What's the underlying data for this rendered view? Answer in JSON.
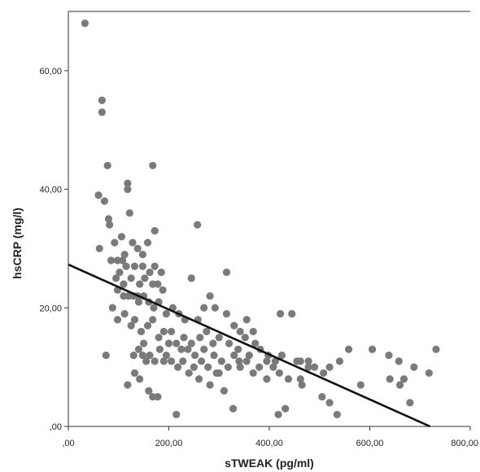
{
  "chart_data": {
    "type": "scatter",
    "title": "",
    "xlabel": "sTWEAK (pg/ml)",
    "ylabel": "hsCRP (mg/l)",
    "xlim": [
      0,
      800
    ],
    "ylim": [
      0,
      70
    ],
    "xticks": [
      0,
      200,
      400,
      600,
      800
    ],
    "yticks": [
      0,
      20,
      40,
      60
    ],
    "xtick_labels": [
      ",00",
      "200,00",
      "400,00",
      "600,00",
      "800,00"
    ],
    "ytick_labels": [
      ",00",
      "20,00",
      "40,00",
      "60,00"
    ],
    "grid": false,
    "legend": "none",
    "colors": {
      "point": "#7a7a7a",
      "line": "#111111",
      "axis": "#333333"
    },
    "points": [
      [
        33,
        68
      ],
      [
        67,
        55
      ],
      [
        67,
        53
      ],
      [
        78,
        44
      ],
      [
        168,
        44
      ],
      [
        60,
        39
      ],
      [
        72,
        38
      ],
      [
        118,
        41
      ],
      [
        118,
        40
      ],
      [
        80,
        35
      ],
      [
        82,
        34
      ],
      [
        122,
        36
      ],
      [
        172,
        33
      ],
      [
        257,
        34
      ],
      [
        62,
        30
      ],
      [
        92,
        31
      ],
      [
        106,
        32
      ],
      [
        112,
        29
      ],
      [
        128,
        31
      ],
      [
        138,
        30
      ],
      [
        148,
        29
      ],
      [
        158,
        31
      ],
      [
        85,
        28
      ],
      [
        98,
        28
      ],
      [
        108,
        28
      ],
      [
        115,
        27
      ],
      [
        132,
        27
      ],
      [
        148,
        27
      ],
      [
        162,
        26
      ],
      [
        172,
        27
      ],
      [
        185,
        26
      ],
      [
        95,
        25
      ],
      [
        125,
        25
      ],
      [
        142,
        24
      ],
      [
        152,
        25
      ],
      [
        168,
        24
      ],
      [
        178,
        24
      ],
      [
        188,
        23
      ],
      [
        98,
        23
      ],
      [
        110,
        22
      ],
      [
        120,
        22
      ],
      [
        130,
        22
      ],
      [
        140,
        21
      ],
      [
        150,
        22
      ],
      [
        160,
        21
      ],
      [
        170,
        20
      ],
      [
        180,
        21
      ],
      [
        195,
        19
      ],
      [
        208,
        20
      ],
      [
        220,
        19
      ],
      [
        232,
        18
      ],
      [
        245,
        25
      ],
      [
        258,
        18
      ],
      [
        270,
        20
      ],
      [
        282,
        22
      ],
      [
        292,
        20
      ],
      [
        315,
        26
      ],
      [
        315,
        19
      ],
      [
        330,
        17
      ],
      [
        342,
        16
      ],
      [
        355,
        18
      ],
      [
        368,
        16
      ],
      [
        98,
        18
      ],
      [
        112,
        19
      ],
      [
        125,
        17
      ],
      [
        132,
        18
      ],
      [
        145,
        16
      ],
      [
        158,
        17
      ],
      [
        168,
        18
      ],
      [
        180,
        15
      ],
      [
        190,
        16
      ],
      [
        205,
        16
      ],
      [
        215,
        14
      ],
      [
        230,
        15
      ],
      [
        245,
        14
      ],
      [
        262,
        15
      ],
      [
        275,
        16
      ],
      [
        288,
        14
      ],
      [
        300,
        15
      ],
      [
        320,
        14
      ],
      [
        338,
        13
      ],
      [
        352,
        15
      ],
      [
        372,
        14
      ],
      [
        382,
        13
      ],
      [
        398,
        12
      ],
      [
        412,
        11
      ],
      [
        425,
        12
      ],
      [
        445,
        19
      ],
      [
        422,
        19
      ],
      [
        462,
        11
      ],
      [
        478,
        11
      ],
      [
        490,
        10
      ],
      [
        508,
        9
      ],
      [
        520,
        10
      ],
      [
        558,
        13
      ],
      [
        605,
        13
      ],
      [
        638,
        12
      ],
      [
        658,
        11
      ],
      [
        668,
        8
      ],
      [
        688,
        10
      ],
      [
        718,
        9
      ],
      [
        732,
        13
      ],
      [
        140,
        13
      ],
      [
        148,
        12
      ],
      [
        155,
        11
      ],
      [
        162,
        12
      ],
      [
        172,
        11
      ],
      [
        182,
        13
      ],
      [
        195,
        12
      ],
      [
        205,
        11
      ],
      [
        218,
        10
      ],
      [
        228,
        11
      ],
      [
        238,
        13
      ],
      [
        252,
        12
      ],
      [
        265,
        11
      ],
      [
        278,
        10
      ],
      [
        290,
        12
      ],
      [
        305,
        11
      ],
      [
        318,
        10
      ],
      [
        330,
        12
      ],
      [
        342,
        10
      ],
      [
        355,
        11
      ],
      [
        368,
        9
      ],
      [
        380,
        10
      ],
      [
        395,
        8
      ],
      [
        408,
        10
      ],
      [
        420,
        9
      ],
      [
        438,
        8
      ],
      [
        462,
        8
      ],
      [
        478,
        10
      ],
      [
        505,
        5
      ],
      [
        520,
        4
      ],
      [
        535,
        2
      ],
      [
        582,
        7
      ],
      [
        640,
        8
      ],
      [
        660,
        7
      ],
      [
        680,
        4
      ],
      [
        75,
        12
      ],
      [
        118,
        7
      ],
      [
        132,
        9
      ],
      [
        142,
        8
      ],
      [
        160,
        6
      ],
      [
        168,
        5
      ],
      [
        178,
        5
      ],
      [
        215,
        2
      ],
      [
        260,
        8
      ],
      [
        282,
        7
      ],
      [
        300,
        9
      ],
      [
        328,
        3
      ],
      [
        418,
        2
      ],
      [
        432,
        3
      ],
      [
        110,
        24
      ],
      [
        138,
        22
      ],
      [
        150,
        14
      ],
      [
        190,
        11
      ],
      [
        225,
        13
      ],
      [
        250,
        10
      ],
      [
        340,
        11
      ],
      [
        360,
        12
      ],
      [
        395,
        11
      ],
      [
        465,
        7
      ],
      [
        88,
        20
      ],
      [
        102,
        26
      ],
      [
        130,
        12
      ],
      [
        200,
        14
      ],
      [
        240,
        9
      ],
      [
        270,
        13
      ],
      [
        295,
        9
      ],
      [
        310,
        6
      ],
      [
        455,
        11
      ],
      [
        540,
        11
      ]
    ],
    "regression_line": [
      [
        0,
        27.3
      ],
      [
        720,
        0
      ]
    ]
  }
}
